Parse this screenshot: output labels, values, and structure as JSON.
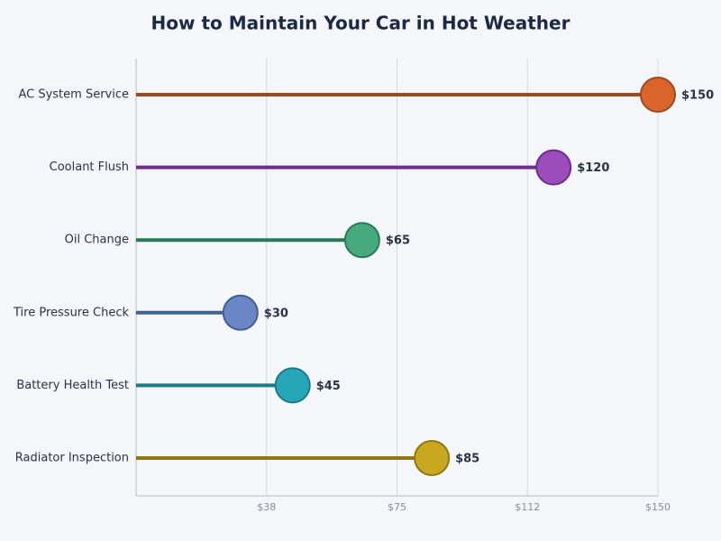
{
  "chart_data": {
    "type": "lollipop",
    "orientation": "horizontal",
    "title": "How to Maintain Your Car in Hot Weather",
    "categories": [
      "AC System Service",
      "Coolant Flush",
      "Oil Change",
      "Tire Pressure Check",
      "Battery Health Test",
      "Radiator Inspection"
    ],
    "values": [
      150,
      120,
      65,
      30,
      45,
      85
    ],
    "value_labels": [
      "$150",
      "$120",
      "$65",
      "$30",
      "$45",
      "$85"
    ],
    "colors": [
      "#d9652b",
      "#9b4dbb",
      "#45ab7c",
      "#6a86c4",
      "#27a6b8",
      "#c9a820"
    ],
    "stem_colors": [
      "#9c4a22",
      "#6e2d8c",
      "#2a7a58",
      "#445f94",
      "#1d7a88",
      "#8f7810"
    ],
    "xlim": [
      0,
      150
    ],
    "xticks": [
      {
        "value": 37.5,
        "label": "$38"
      },
      {
        "value": 75,
        "label": "$75"
      },
      {
        "value": 112.5,
        "label": "$112"
      },
      {
        "value": 150,
        "label": "$150"
      }
    ],
    "grid": true
  }
}
